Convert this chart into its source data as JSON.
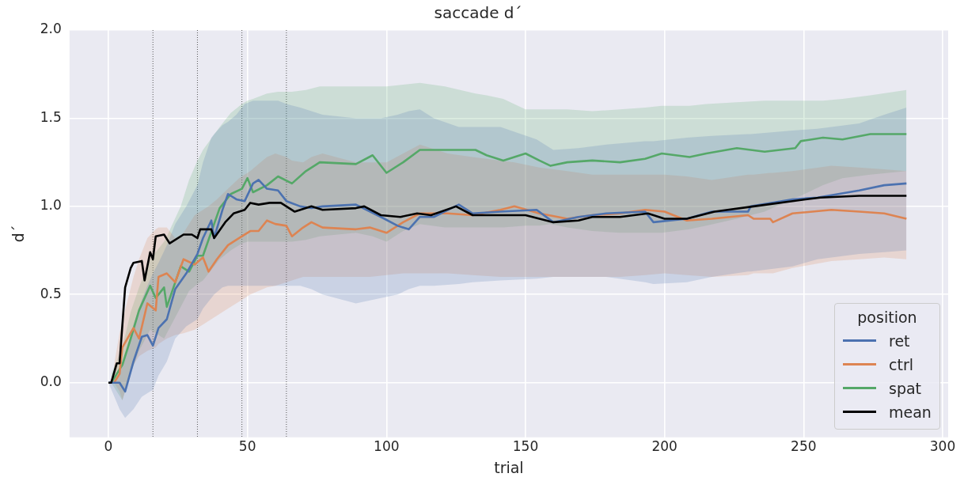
{
  "chart_data": {
    "type": "line",
    "title": "saccade d´",
    "xlabel": "trial",
    "ylabel": "d´",
    "legend_title": "position",
    "legend": "bottom right",
    "grid": true,
    "marker": "none",
    "line_style": "solid",
    "xlim": [
      -14,
      302
    ],
    "xticks": [
      0,
      50,
      100,
      150,
      200,
      250,
      300
    ],
    "ylim": [
      -0.31,
      2.0
    ],
    "yticks": [
      {
        "value": 0,
        "label": "0.0"
      },
      0.5,
      {
        "value": 1,
        "label": "1.0"
      },
      1.5,
      {
        "value": 2,
        "label": "2.0"
      }
    ],
    "ref_lines": [
      {
        "axis": "x",
        "value": 16,
        "color": "#555555",
        "line_style": "dotted"
      },
      {
        "axis": "x",
        "value": 32,
        "color": "#555555",
        "line_style": "dotted"
      },
      {
        "axis": "x",
        "value": 48,
        "color": "#555555",
        "line_style": "dotted"
      },
      {
        "axis": "x",
        "value": 64,
        "color": "#555555",
        "line_style": "dotted"
      }
    ],
    "series": [
      {
        "name": "ret",
        "color": "#4c72b0",
        "x": [
          0,
          4,
          6,
          9,
          12,
          14,
          16,
          18,
          21,
          24,
          28,
          32,
          34,
          37,
          38,
          41,
          43,
          46,
          49,
          52,
          54,
          57,
          61,
          64,
          69,
          73,
          77,
          89,
          98,
          104,
          108,
          112,
          117,
          126,
          131,
          141,
          154,
          160,
          169,
          179,
          193,
          196,
          208,
          217,
          230,
          231,
          246,
          255,
          270,
          279,
          287
        ],
        "values": [
          0,
          0,
          -0.05,
          0.12,
          0.26,
          0.27,
          0.21,
          0.31,
          0.36,
          0.53,
          0.62,
          0.73,
          0.82,
          0.92,
          0.82,
          0.98,
          1.07,
          1.04,
          1.03,
          1.13,
          1.15,
          1.1,
          1.09,
          1.03,
          1.0,
          0.99,
          1.0,
          1.01,
          0.94,
          0.89,
          0.87,
          0.94,
          0.94,
          1.01,
          0.96,
          0.97,
          0.98,
          0.91,
          0.94,
          0.96,
          0.97,
          0.91,
          0.93,
          0.97,
          0.97,
          1.0,
          1.04,
          1.05,
          1.09,
          1.12,
          1.13
        ],
        "upper": [
          0,
          0.05,
          0.15,
          0.33,
          0.47,
          0.55,
          0.62,
          0.68,
          0.78,
          0.9,
          1.0,
          1.12,
          1.25,
          1.39,
          1.41,
          1.46,
          1.48,
          1.52,
          1.58,
          1.6,
          1.6,
          1.6,
          1.6,
          1.58,
          1.56,
          1.54,
          1.52,
          1.5,
          1.5,
          1.52,
          1.54,
          1.55,
          1.5,
          1.45,
          1.45,
          1.45,
          1.38,
          1.32,
          1.33,
          1.35,
          1.37,
          1.37,
          1.39,
          1.4,
          1.41,
          1.41,
          1.43,
          1.44,
          1.47,
          1.52,
          1.56
        ],
        "lower": [
          0,
          -0.15,
          -0.2,
          -0.15,
          -0.08,
          -0.06,
          -0.04,
          0.04,
          0.12,
          0.25,
          0.32,
          0.36,
          0.42,
          0.48,
          0.5,
          0.54,
          0.55,
          0.55,
          0.55,
          0.55,
          0.55,
          0.55,
          0.55,
          0.55,
          0.55,
          0.53,
          0.5,
          0.45,
          0.48,
          0.5,
          0.53,
          0.55,
          0.55,
          0.56,
          0.57,
          0.58,
          0.59,
          0.6,
          0.6,
          0.6,
          0.57,
          0.56,
          0.57,
          0.6,
          0.63,
          0.63,
          0.66,
          0.7,
          0.73,
          0.74,
          0.75
        ]
      },
      {
        "name": "ctrl",
        "color": "#dd8452",
        "x": [
          2,
          4,
          5,
          9,
          11,
          14,
          17,
          18,
          21,
          24,
          27,
          31,
          34,
          36,
          39,
          43,
          47,
          51,
          54,
          57,
          60,
          64,
          66,
          70,
          73,
          77,
          89,
          94,
          100,
          106,
          112,
          122,
          131,
          141,
          146,
          155,
          165,
          174,
          184,
          193,
          200,
          208,
          217,
          230,
          232,
          238,
          239,
          246,
          260,
          270,
          279,
          287
        ],
        "values": [
          0,
          0.05,
          0.2,
          0.31,
          0.25,
          0.45,
          0.41,
          0.6,
          0.62,
          0.57,
          0.7,
          0.67,
          0.71,
          0.63,
          0.7,
          0.78,
          0.82,
          0.86,
          0.86,
          0.92,
          0.9,
          0.89,
          0.83,
          0.88,
          0.91,
          0.88,
          0.87,
          0.88,
          0.85,
          0.91,
          0.96,
          0.96,
          0.95,
          0.98,
          1.0,
          0.96,
          0.93,
          0.95,
          0.96,
          0.98,
          0.97,
          0.92,
          0.93,
          0.95,
          0.93,
          0.93,
          0.91,
          0.96,
          0.98,
          0.97,
          0.96,
          0.93
        ],
        "upper": [
          0.1,
          0.28,
          0.35,
          0.6,
          0.7,
          0.82,
          0.87,
          0.88,
          0.88,
          0.82,
          0.85,
          0.95,
          0.98,
          1.0,
          1.04,
          1.1,
          1.16,
          1.2,
          1.24,
          1.28,
          1.3,
          1.28,
          1.26,
          1.25,
          1.28,
          1.3,
          1.25,
          1.25,
          1.25,
          1.3,
          1.35,
          1.3,
          1.28,
          1.26,
          1.25,
          1.22,
          1.2,
          1.18,
          1.18,
          1.18,
          1.18,
          1.17,
          1.15,
          1.18,
          1.18,
          1.19,
          1.19,
          1.2,
          1.23,
          1.22,
          1.21,
          1.2
        ],
        "lower": [
          0,
          -0.05,
          -0.1,
          0.1,
          0.15,
          0.18,
          0.2,
          0.22,
          0.25,
          0.27,
          0.28,
          0.3,
          0.33,
          0.35,
          0.38,
          0.42,
          0.46,
          0.5,
          0.52,
          0.54,
          0.55,
          0.57,
          0.58,
          0.6,
          0.6,
          0.6,
          0.6,
          0.6,
          0.61,
          0.62,
          0.62,
          0.62,
          0.61,
          0.6,
          0.6,
          0.6,
          0.6,
          0.6,
          0.6,
          0.61,
          0.62,
          0.61,
          0.6,
          0.61,
          0.62,
          0.62,
          0.62,
          0.65,
          0.69,
          0.7,
          0.71,
          0.7
        ]
      },
      {
        "name": "spat",
        "color": "#55a868",
        "x": [
          1,
          5,
          8,
          11,
          15,
          17,
          20,
          21,
          26,
          29,
          32,
          34,
          40,
          44,
          48,
          50,
          52,
          57,
          61,
          66,
          71,
          76,
          89,
          95,
          100,
          106,
          112,
          121,
          132,
          136,
          142,
          150,
          155,
          159,
          165,
          174,
          184,
          193,
          199,
          209,
          215,
          226,
          236,
          247,
          249,
          257,
          264,
          274,
          287
        ],
        "values": [
          0,
          0.1,
          0.25,
          0.41,
          0.55,
          0.48,
          0.54,
          0.43,
          0.66,
          0.63,
          0.72,
          0.72,
          0.99,
          1.07,
          1.1,
          1.16,
          1.08,
          1.12,
          1.17,
          1.13,
          1.2,
          1.25,
          1.24,
          1.29,
          1.19,
          1.25,
          1.32,
          1.32,
          1.32,
          1.29,
          1.26,
          1.3,
          1.26,
          1.23,
          1.25,
          1.26,
          1.25,
          1.27,
          1.3,
          1.28,
          1.3,
          1.33,
          1.31,
          1.33,
          1.37,
          1.39,
          1.38,
          1.41,
          1.41
        ],
        "upper": [
          0.05,
          0.2,
          0.4,
          0.54,
          0.7,
          0.74,
          0.8,
          0.83,
          1.0,
          1.15,
          1.26,
          1.32,
          1.45,
          1.53,
          1.58,
          1.6,
          1.61,
          1.64,
          1.65,
          1.65,
          1.66,
          1.68,
          1.68,
          1.68,
          1.68,
          1.69,
          1.7,
          1.68,
          1.64,
          1.63,
          1.61,
          1.55,
          1.55,
          1.55,
          1.55,
          1.54,
          1.55,
          1.56,
          1.57,
          1.57,
          1.58,
          1.59,
          1.6,
          1.6,
          1.6,
          1.6,
          1.61,
          1.63,
          1.66
        ],
        "lower": [
          0,
          -0.1,
          0.05,
          0.18,
          0.3,
          0.28,
          0.25,
          0.28,
          0.43,
          0.52,
          0.56,
          0.58,
          0.7,
          0.75,
          0.79,
          0.8,
          0.8,
          0.8,
          0.8,
          0.8,
          0.81,
          0.83,
          0.85,
          0.83,
          0.8,
          0.86,
          0.9,
          0.88,
          0.88,
          0.88,
          0.88,
          0.89,
          0.89,
          0.9,
          0.88,
          0.86,
          0.85,
          0.85,
          0.85,
          0.87,
          0.89,
          0.93,
          0.97,
          1.05,
          1.06,
          1.12,
          1.16,
          1.18,
          1.2
        ]
      },
      {
        "name": "mean",
        "color": "#000000",
        "x": [
          0,
          1,
          3,
          4,
          6,
          8,
          9,
          12,
          13,
          15,
          16,
          17,
          20,
          22,
          27,
          30,
          32,
          33,
          37,
          38,
          42,
          45,
          49,
          51,
          54,
          58,
          62,
          67,
          73,
          77,
          89,
          92,
          98,
          105,
          111,
          116,
          125,
          131,
          141,
          150,
          155,
          160,
          169,
          174,
          184,
          194,
          200,
          208,
          218,
          232,
          246,
          256,
          270,
          287
        ],
        "values": [
          0,
          0,
          0.11,
          0.11,
          0.54,
          0.65,
          0.68,
          0.69,
          0.58,
          0.74,
          0.7,
          0.83,
          0.84,
          0.79,
          0.84,
          0.84,
          0.82,
          0.87,
          0.87,
          0.82,
          0.91,
          0.96,
          0.98,
          1.02,
          1.01,
          1.02,
          1.02,
          0.97,
          1.0,
          0.98,
          0.99,
          1.0,
          0.95,
          0.94,
          0.96,
          0.95,
          1.0,
          0.95,
          0.95,
          0.95,
          0.93,
          0.91,
          0.92,
          0.94,
          0.94,
          0.96,
          0.93,
          0.93,
          0.97,
          1.0,
          1.03,
          1.05,
          1.06,
          1.06
        ]
      }
    ]
  }
}
